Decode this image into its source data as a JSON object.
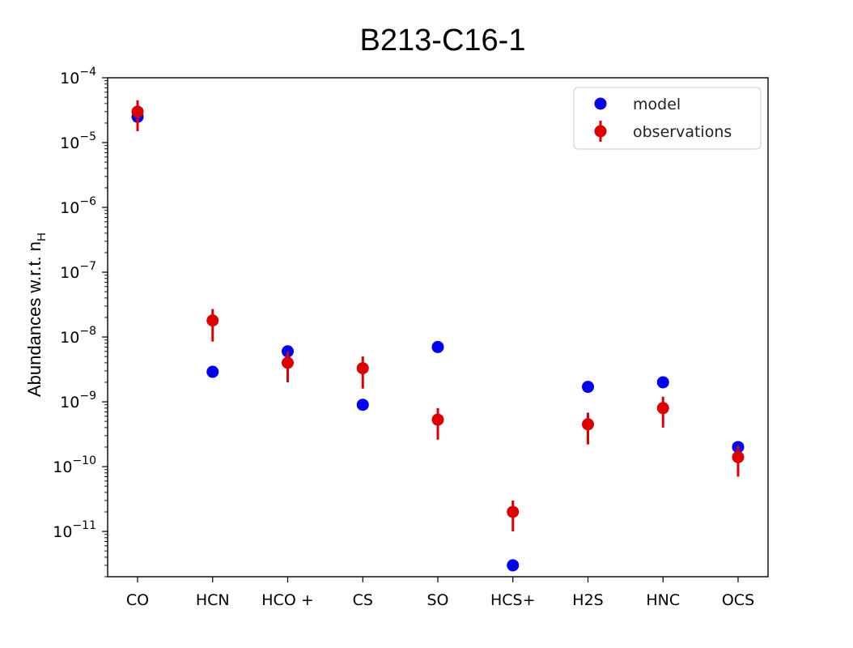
{
  "chart_data": {
    "type": "scatter",
    "title": "B213-C16-1",
    "ylabel_main": "Abundances w.r.t. n",
    "ylabel_sub": "H",
    "xlabel": "",
    "yscale": "log",
    "ylim": [
      2e-12,
      0.0001
    ],
    "yticks": [
      {
        "value": 0.0001,
        "base": "10",
        "exp": "−4"
      },
      {
        "value": 1e-05,
        "base": "10",
        "exp": "−5"
      },
      {
        "value": 1e-06,
        "base": "10",
        "exp": "−6"
      },
      {
        "value": 1e-07,
        "base": "10",
        "exp": "−7"
      },
      {
        "value": 1e-08,
        "base": "10",
        "exp": "−8"
      },
      {
        "value": 1e-09,
        "base": "10",
        "exp": "−9"
      },
      {
        "value": 1e-10,
        "base": "10",
        "exp": "−10"
      },
      {
        "value": 1e-11,
        "base": "10",
        "exp": "−11"
      }
    ],
    "categories": [
      "CO",
      "HCN",
      "HCO +",
      "CS",
      "SO",
      "HCS+",
      "H2S",
      "HNC",
      "OCS"
    ],
    "grid": false,
    "legend": "top-right",
    "series": [
      {
        "name": "model",
        "color": "#0000ee",
        "marker": "circle",
        "values": [
          2.5e-05,
          2.9e-09,
          6e-09,
          9e-10,
          7e-09,
          3e-12,
          1.7e-09,
          2e-09,
          2e-10
        ]
      },
      {
        "name": "observations",
        "color": "#dd0000",
        "marker": "circle-errorbar",
        "values": [
          3e-05,
          1.8e-08,
          4e-09,
          3.3e-09,
          5.3e-10,
          2e-11,
          4.5e-10,
          8e-10,
          1.4e-10
        ],
        "err_low": [
          1.5e-05,
          8.5e-09,
          2e-09,
          1.6e-09,
          2.6e-10,
          1e-11,
          2.2e-10,
          4e-10,
          7e-11
        ],
        "err_high": [
          4.5e-05,
          2.7e-08,
          6e-09,
          5e-09,
          8e-10,
          3e-11,
          6.8e-10,
          1.2e-09,
          2.1e-10
        ]
      }
    ]
  }
}
